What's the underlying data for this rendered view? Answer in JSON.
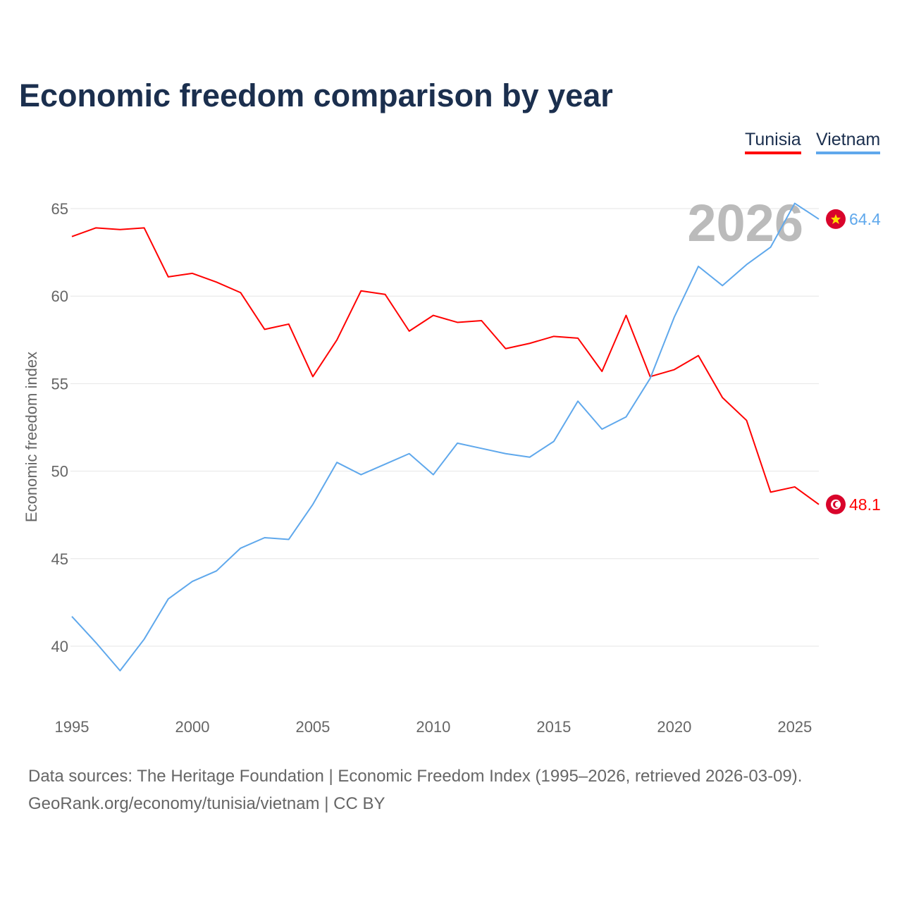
{
  "chart_data": {
    "type": "line",
    "title": "Economic freedom comparison by year",
    "xlabel": "",
    "ylabel": "Economic freedom index",
    "ylim": [
      36,
      67
    ],
    "xlim": [
      1995,
      2026
    ],
    "yticks": [
      40,
      45,
      50,
      55,
      60,
      65
    ],
    "xticks": [
      1995,
      2000,
      2005,
      2010,
      2015,
      2020,
      2025
    ],
    "year_watermark": "2026",
    "legend_position": "top-right",
    "x": [
      1995,
      1996,
      1997,
      1998,
      1999,
      2000,
      2001,
      2002,
      2003,
      2004,
      2005,
      2006,
      2007,
      2008,
      2009,
      2010,
      2011,
      2012,
      2013,
      2014,
      2015,
      2016,
      2017,
      2018,
      2019,
      2020,
      2021,
      2022,
      2023,
      2024,
      2025,
      2026
    ],
    "series": [
      {
        "name": "Tunisia",
        "color": "#ff0000",
        "end_label": "48.1",
        "values": [
          63.4,
          63.9,
          63.8,
          63.9,
          61.1,
          61.3,
          60.8,
          60.2,
          58.1,
          58.4,
          55.4,
          57.5,
          60.3,
          60.1,
          58.0,
          58.9,
          58.5,
          58.6,
          57.0,
          57.3,
          57.7,
          57.6,
          55.7,
          58.9,
          55.4,
          55.8,
          56.6,
          54.2,
          52.9,
          48.8,
          49.1,
          48.1
        ]
      },
      {
        "name": "Vietnam",
        "color": "#5fa8ec",
        "end_label": "64.4",
        "values": [
          41.7,
          40.2,
          38.6,
          40.4,
          42.7,
          43.7,
          44.3,
          45.6,
          46.2,
          46.1,
          48.1,
          50.5,
          49.8,
          50.4,
          51.0,
          49.8,
          51.6,
          51.3,
          51.0,
          50.8,
          51.7,
          54.0,
          52.4,
          53.1,
          55.3,
          58.8,
          61.7,
          60.6,
          61.8,
          62.8,
          65.3,
          64.4
        ]
      }
    ]
  },
  "footer": {
    "line1": "Data sources: The Heritage Foundation | Economic Freedom Index (1995–2026, retrieved 2026-03-09).",
    "line2": "GeoRank.org/economy/tunisia/vietnam | CC BY"
  }
}
